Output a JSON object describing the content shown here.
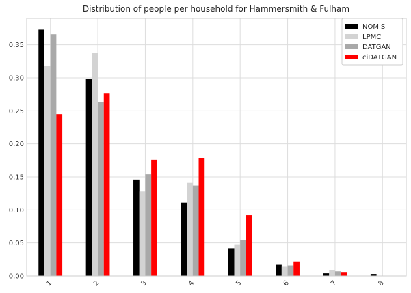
{
  "chart_data": {
    "type": "bar",
    "title": "Distribution of people per household for Hammersmith & Fulham",
    "xlabel": "",
    "ylabel": "",
    "categories": [
      "1",
      "2",
      "3",
      "4",
      "5",
      "6",
      "7",
      "8"
    ],
    "ylim": [
      0,
      0.39
    ],
    "yticks": [
      "0.00",
      "0.05",
      "0.10",
      "0.15",
      "0.20",
      "0.25",
      "0.30",
      "0.35"
    ],
    "grid": true,
    "legend_position": "top-right",
    "series": [
      {
        "name": "NOMIS",
        "color": "#000000",
        "values": [
          0.373,
          0.298,
          0.146,
          0.111,
          0.042,
          0.017,
          0.004,
          0.003
        ]
      },
      {
        "name": "LPMC",
        "color": "#d3d3d3",
        "values": [
          0.318,
          0.338,
          0.128,
          0.141,
          0.048,
          0.014,
          0.009,
          0.0
        ]
      },
      {
        "name": "DATGAN",
        "color": "#a9a9a9",
        "values": [
          0.366,
          0.263,
          0.154,
          0.137,
          0.054,
          0.016,
          0.007,
          0.0
        ]
      },
      {
        "name": "ciDATGAN",
        "color": "#ff0000",
        "values": [
          0.245,
          0.277,
          0.176,
          0.178,
          0.092,
          0.022,
          0.006,
          0.0
        ]
      }
    ]
  }
}
